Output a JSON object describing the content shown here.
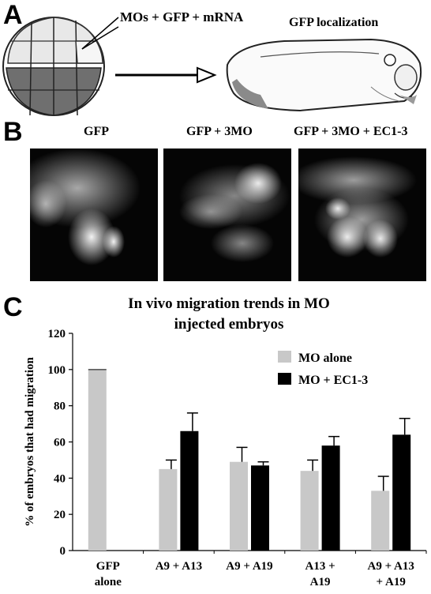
{
  "panel_a": {
    "letter": "A",
    "injection_label": "MOs + GFP + mRNA",
    "localization_label": "GFP localization"
  },
  "panel_b": {
    "letter": "B",
    "images": [
      {
        "label": "GFP"
      },
      {
        "label": "GFP + 3MO"
      },
      {
        "label": "GFP + 3MO + EC1-3"
      }
    ]
  },
  "panel_c": {
    "letter": "C"
  },
  "colors": {
    "mo_alone": "#c8c8c8",
    "mo_ec": "#000000"
  },
  "chart_data": {
    "type": "bar",
    "title": [
      "In vivo migration trends in MO",
      "injected embryos"
    ],
    "ylabel": "% of embryos that had migration",
    "xlabel": "",
    "ylim": [
      0,
      120
    ],
    "yticks": [
      0,
      20,
      40,
      60,
      80,
      100,
      120
    ],
    "categories": [
      [
        "GFP",
        "alone"
      ],
      [
        "A9 + A13"
      ],
      [
        "A9 + A19"
      ],
      [
        "A13 +",
        "A19"
      ],
      [
        "A9 + A13",
        "+ A19"
      ]
    ],
    "series": [
      {
        "name": "MO alone",
        "color": "#c8c8c8",
        "values": [
          100,
          45,
          49,
          44,
          33
        ],
        "errors": [
          0,
          5,
          8,
          6,
          8
        ]
      },
      {
        "name": "MO + EC1-3",
        "color": "#000000",
        "values": [
          null,
          66,
          47,
          58,
          64
        ],
        "errors": [
          null,
          10,
          2,
          5,
          9
        ]
      }
    ],
    "legend": "top-right",
    "grid": false
  }
}
